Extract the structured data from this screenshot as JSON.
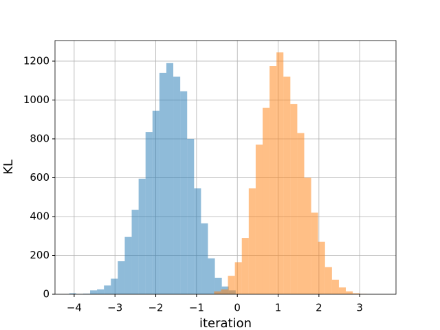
{
  "chart_data": {
    "type": "histogram",
    "xlabel": "iteration",
    "ylabel": "KL",
    "xlim": [
      -4.47,
      3.89
    ],
    "ylim": [
      0,
      1306
    ],
    "xticks": [
      {
        "value": -4,
        "label": "−4"
      },
      {
        "value": -3,
        "label": "−3"
      },
      {
        "value": -2,
        "label": "−2"
      },
      {
        "value": -1,
        "label": "−1"
      },
      0,
      1,
      2,
      3
    ],
    "yticks": [
      0,
      200,
      400,
      600,
      800,
      1000,
      1200
    ],
    "grid": true,
    "alpha": 0.5,
    "series": [
      {
        "color": "#1f77b4",
        "bins": [
          -4.12,
          -3.95,
          -3.78,
          -3.61,
          -3.44,
          -3.27,
          -3.1,
          -2.93,
          -2.76,
          -2.59,
          -2.42,
          -2.25,
          -2.08,
          -1.91,
          -1.74,
          -1.57,
          -1.4,
          -1.23,
          -1.06,
          -0.89,
          -0.72,
          -0.55,
          -0.38,
          -0.21,
          -0.04
        ],
        "values": [
          5,
          1,
          3,
          20,
          25,
          45,
          80,
          170,
          295,
          435,
          595,
          835,
          945,
          1140,
          1190,
          1120,
          1045,
          800,
          545,
          365,
          185,
          85,
          40,
          20
        ]
      },
      {
        "color": "#ff7f0e",
        "bins": [
          -0.57,
          -0.4,
          -0.23,
          -0.06,
          0.11,
          0.28,
          0.45,
          0.62,
          0.79,
          0.96,
          1.13,
          1.3,
          1.47,
          1.64,
          1.81,
          1.98,
          2.15,
          2.32,
          2.49,
          2.66,
          2.83,
          3.0,
          3.17
        ],
        "values": [
          15,
          25,
          95,
          165,
          290,
          545,
          770,
          960,
          1175,
          1245,
          1120,
          980,
          830,
          600,
          420,
          270,
          140,
          75,
          35,
          15,
          5,
          2
        ]
      }
    ]
  }
}
